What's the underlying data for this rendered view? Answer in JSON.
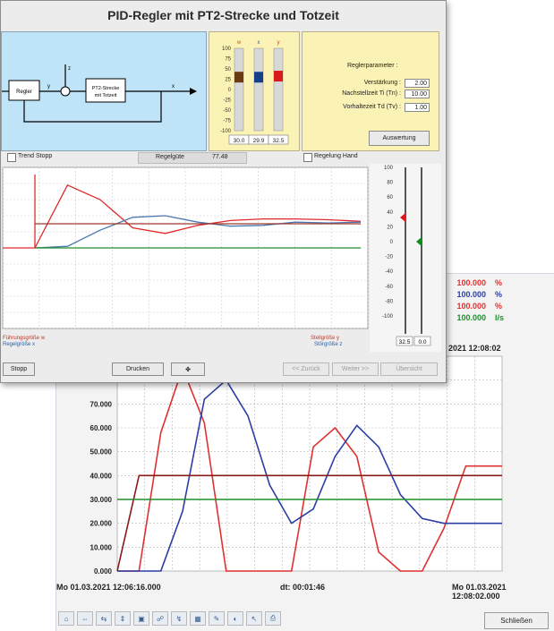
{
  "front": {
    "title": "PID-Regler mit PT2-Strecke und Totzeit",
    "diagram": {
      "regler": "Regler",
      "strecke_l1": "PT2-Strecke",
      "strecke_l2": "mit Totzeit",
      "w": "w",
      "y": "y",
      "z": "z",
      "x": "x"
    },
    "bars": {
      "headers": [
        "w",
        "x",
        "y"
      ],
      "header_colors": [
        "#c05a18",
        "#3653a3",
        "#d93030"
      ],
      "ticks": [
        "100",
        "75",
        "50",
        "25",
        "0",
        "-25",
        "-50",
        "-75",
        "-100"
      ],
      "values_text": [
        "30.0",
        "29.9",
        "32.5"
      ],
      "values": [
        30.0,
        29.9,
        32.5
      ],
      "colors": [
        "#6a3a12",
        "#163f8a",
        "#d91a1a"
      ]
    },
    "params": {
      "heading": "Reglerparameter :",
      "gain_label": "Verstärkung :",
      "gain_value": "2.00",
      "ti_label": "Nachstellzeit Ti (Tn) :",
      "ti_value": "10.00",
      "td_label": "Vorhaltezeit Td (Tv) :",
      "td_value": "1.00",
      "eval_button": "Auswertung"
    },
    "status": {
      "trend_stop": "Trend Stopp",
      "quality_label": "Regelgüte",
      "quality_value": "77.48",
      "manual": "Regelung Hand"
    },
    "scale": {
      "ticks": [
        "100",
        "80",
        "60",
        "40",
        "20",
        "0",
        "-20",
        "-40",
        "-60",
        "-80",
        "-100"
      ],
      "y_value": "32.5",
      "z_value": "0.0",
      "y_level": 32.5,
      "z_level": 0.0,
      "y_color": "#e0191f",
      "z_color": "#11891e"
    },
    "legend": {
      "left1": "Führungsgröße w",
      "left2": "Regelgröße x",
      "right1": "Stellgröße y",
      "right2": "Störgröße z"
    },
    "buttons": {
      "stop": "Stopp",
      "print": "Drucken",
      "icon": "✤",
      "back": "<< Zurück",
      "next": "Weiter >>",
      "overview": "Übersicht"
    }
  },
  "back": {
    "values": [
      {
        "num": "100.000",
        "unit": "%",
        "color": "#e03030"
      },
      {
        "num": "100.000",
        "unit": "%",
        "color": "#2a3ea6"
      },
      {
        "num": "100.000",
        "unit": "%",
        "color": "#e03030"
      },
      {
        "num": "100.000",
        "unit": "l/s",
        "color": "#1f8f2c"
      }
    ],
    "time_right_top": "2021 12:08:02",
    "time_left": "Mo 01.03.2021 12:06:16.000",
    "time_mid": "dt: 00:01:46",
    "time_right": "Mo 01.03.2021 12:08:02.000",
    "close_button": "Schließen",
    "toolbar_icons": [
      "home-icon",
      "scale-icon",
      "zoom-x-icon",
      "zoom-y-icon",
      "fit-icon",
      "binoculars-icon",
      "cursor-icon",
      "grid-icon",
      "marker-icon",
      "color-icon",
      "pointer-icon",
      "print-icon"
    ]
  },
  "chart_data": [
    {
      "type": "line",
      "x": [
        0,
        10,
        20,
        30,
        40,
        50,
        60,
        70,
        80,
        90,
        100
      ],
      "ylim": [
        -100,
        100
      ],
      "y_ticks": [
        "100",
        "80",
        "60",
        "40",
        "20",
        "0",
        "-20",
        "-40",
        "-60",
        "-80",
        "-100"
      ],
      "series": [
        {
          "name": "Stellgröße y",
          "color": "#e0292d",
          "values": [
            0,
            78,
            60,
            25,
            18,
            28,
            34,
            36,
            36,
            35,
            33
          ]
        },
        {
          "name": "Regelgröße x",
          "color": "#4a77b0",
          "values": [
            0,
            2,
            22,
            38,
            40,
            32,
            27,
            28,
            32,
            31,
            32
          ]
        },
        {
          "name": "Störgröße z",
          "color": "#1f8f2c",
          "values": [
            0,
            0,
            0,
            0,
            0,
            0,
            0,
            0,
            0,
            0,
            0
          ]
        },
        {
          "name": "Führungsgröße w",
          "color": "#9a3b2b",
          "values": [
            30,
            30,
            30,
            30,
            30,
            30,
            30,
            30,
            30,
            30,
            30
          ]
        }
      ]
    },
    {
      "type": "line",
      "y_ticks": [
        "0.000",
        "10.000",
        "20.000",
        "30.000",
        "40.000",
        "50.000",
        "60.000",
        "70.000",
        "80.000"
      ],
      "ylim": [
        0,
        90
      ],
      "x": [
        0,
        6,
        12,
        18,
        24,
        30,
        36,
        42,
        48,
        54,
        60,
        66,
        72,
        78,
        84,
        90,
        96,
        102,
        106
      ],
      "series": [
        {
          "color": "#e03030",
          "values": [
            0,
            0,
            58,
            85,
            62,
            0,
            0,
            0,
            0,
            52,
            60,
            48,
            8,
            0,
            0,
            18,
            44,
            44,
            44
          ]
        },
        {
          "color": "#2a3ea6",
          "values": [
            0,
            0,
            0,
            25,
            72,
            80,
            65,
            36,
            20,
            26,
            48,
            61,
            52,
            32,
            22,
            20,
            20,
            20,
            20
          ]
        },
        {
          "color": "#8b1a1a",
          "values": [
            0,
            40,
            40,
            40,
            40,
            40,
            40,
            40,
            40,
            40,
            40,
            40,
            40,
            40,
            40,
            40,
            40,
            40,
            40
          ]
        },
        {
          "color": "#1f8f2c",
          "values": [
            30,
            30,
            30,
            30,
            30,
            30,
            30,
            30,
            30,
            30,
            30,
            30,
            30,
            30,
            30,
            30,
            30,
            30,
            30
          ]
        }
      ]
    }
  ]
}
